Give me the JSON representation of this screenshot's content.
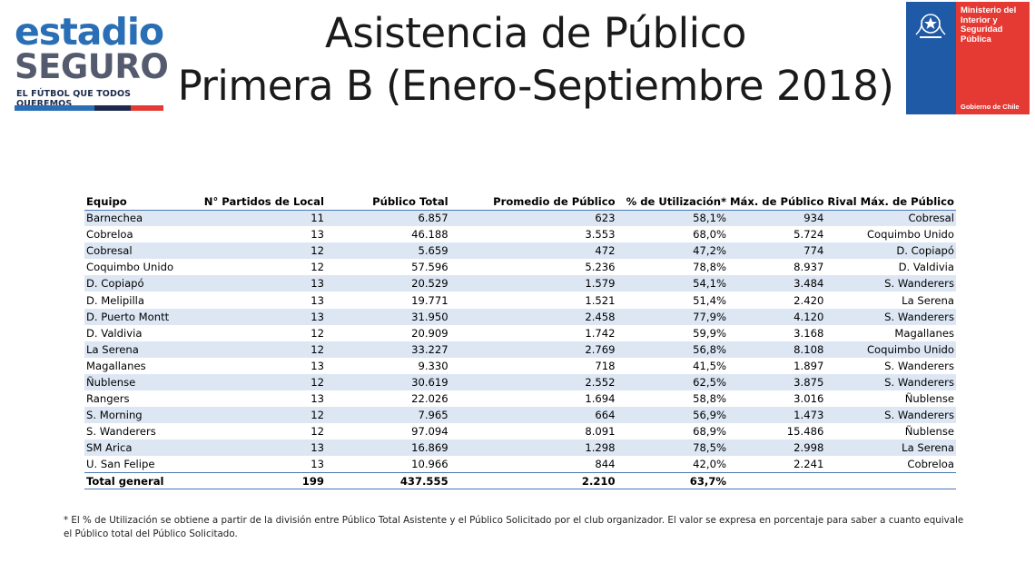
{
  "logo_left": {
    "word1": "estadio",
    "word2": "SEGURO",
    "tagline": "EL FÚTBOL QUE TODOS QUEREMOS",
    "stripe_colors": [
      "#2a6fb5",
      "#1d2a4d",
      "#e53a34"
    ]
  },
  "title": {
    "line1": "Asistencia de Público",
    "line2": "Primera B (Enero-Septiembre 2018)"
  },
  "logo_right": {
    "text": "Ministerio del Interior y Seguridad Pública",
    "line1": "Ministerio del",
    "line2": "Interior y",
    "line3": "Seguridad",
    "line4": "Pública",
    "gobierno": "Gobierno de Chile",
    "colors": {
      "blue": "#1f5aa6",
      "red": "#e53a34"
    }
  },
  "table": {
    "headers": [
      "Equipo",
      "N° Partidos de Local",
      "Público Total",
      "Promedio de Público",
      "% de Utilización*",
      "Máx. de Público",
      "Rival Máx. de Público"
    ],
    "rows": [
      [
        "Barnechea",
        "11",
        "6.857",
        "623",
        "58,1%",
        "934",
        "Cobresal"
      ],
      [
        "Cobreloa",
        "13",
        "46.188",
        "3.553",
        "68,0%",
        "5.724",
        "Coquimbo Unido"
      ],
      [
        "Cobresal",
        "12",
        "5.659",
        "472",
        "47,2%",
        "774",
        "D. Copiapó"
      ],
      [
        "Coquimbo Unido",
        "12",
        "57.596",
        "5.236",
        "78,8%",
        "8.937",
        "D. Valdivia"
      ],
      [
        "D. Copiapó",
        "13",
        "20.529",
        "1.579",
        "54,1%",
        "3.484",
        "S. Wanderers"
      ],
      [
        "D. Melipilla",
        "13",
        "19.771",
        "1.521",
        "51,4%",
        "2.420",
        "La Serena"
      ],
      [
        "D. Puerto Montt",
        "13",
        "31.950",
        "2.458",
        "77,9%",
        "4.120",
        "S. Wanderers"
      ],
      [
        "D. Valdivia",
        "12",
        "20.909",
        "1.742",
        "59,9%",
        "3.168",
        "Magallanes"
      ],
      [
        "La Serena",
        "12",
        "33.227",
        "2.769",
        "56,8%",
        "8.108",
        "Coquimbo Unido"
      ],
      [
        "Magallanes",
        "13",
        "9.330",
        "718",
        "41,5%",
        "1.897",
        "S. Wanderers"
      ],
      [
        "Ñublense",
        "12",
        "30.619",
        "2.552",
        "62,5%",
        "3.875",
        "S. Wanderers"
      ],
      [
        "Rangers",
        "13",
        "22.026",
        "1.694",
        "58,8%",
        "3.016",
        "Ñublense"
      ],
      [
        "S. Morning",
        "12",
        "7.965",
        "664",
        "56,9%",
        "1.473",
        "S. Wanderers"
      ],
      [
        "S. Wanderers",
        "12",
        "97.094",
        "8.091",
        "68,9%",
        "15.486",
        "Ñublense"
      ],
      [
        "SM Arica",
        "13",
        "16.869",
        "1.298",
        "78,5%",
        "2.998",
        "La Serena"
      ],
      [
        "U. San Felipe",
        "13",
        "10.966",
        "844",
        "42,0%",
        "2.241",
        "Cobreloa"
      ]
    ],
    "total": [
      "Total general",
      "199",
      "437.555",
      "2.210",
      "63,7%",
      "",
      ""
    ],
    "stripe_color": "#dde7f4",
    "rule_color": "#4a78b5"
  },
  "footnote": "* El % de Utilización se obtiene a partir de la división entre Público Total Asistente y el Público Solicitado por el club organizador. El valor se expresa en porcentaje para saber a cuanto equivale el Público total del Público Solicitado."
}
